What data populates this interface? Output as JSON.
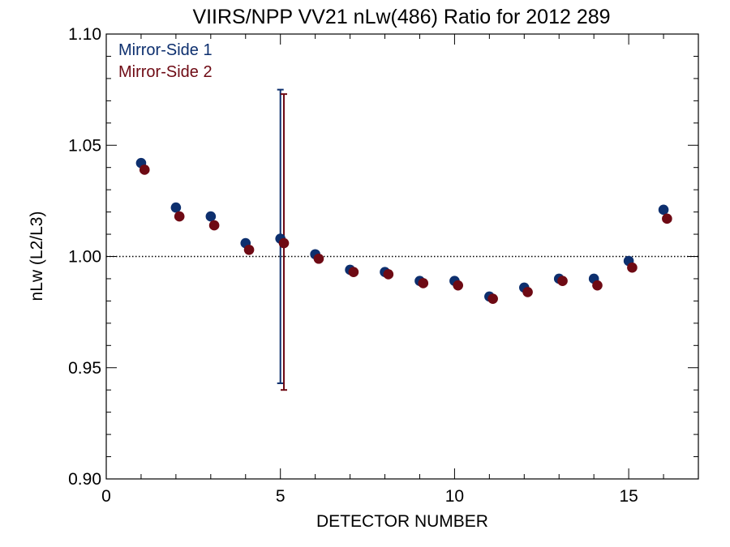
{
  "chart_data": {
    "type": "scatter",
    "title": "VIIRS/NPP VV21 nLw(486) Ratio for 2012 289",
    "xlabel": "DETECTOR NUMBER",
    "ylabel": "nLw (L2/L3)",
    "xlim": [
      0,
      17
    ],
    "ylim": [
      0.9,
      1.1
    ],
    "xticks": [
      0,
      5,
      10,
      15
    ],
    "xtick_labels": [
      "0",
      "5",
      "10",
      "15"
    ],
    "yticks": [
      0.9,
      0.95,
      1.0,
      1.05,
      1.1
    ],
    "ytick_labels": [
      "0.90",
      "0.95",
      "1.00",
      "1.05",
      "1.10"
    ],
    "reference_line": 1.0,
    "legend_position": "top-left",
    "series": [
      {
        "name": "Mirror-Side 1",
        "color": "#0d2f6e",
        "x": [
          1,
          2,
          3,
          4,
          5,
          6,
          7,
          8,
          9,
          10,
          11,
          12,
          13,
          14,
          15,
          16
        ],
        "y": [
          1.042,
          1.022,
          1.018,
          1.006,
          1.008,
          1.001,
          0.994,
          0.993,
          0.989,
          0.989,
          0.982,
          0.986,
          0.99,
          0.99,
          0.998,
          1.021
        ],
        "error_bar": {
          "x": 5,
          "low": 0.943,
          "high": 1.075
        }
      },
      {
        "name": "Mirror-Side 2",
        "color": "#6e0a14",
        "x": [
          1.1,
          2.1,
          3.1,
          4.1,
          5.1,
          6.1,
          7.1,
          8.1,
          9.1,
          10.1,
          11.1,
          12.1,
          13.1,
          14.1,
          15.1,
          16.1
        ],
        "y": [
          1.039,
          1.018,
          1.014,
          1.003,
          1.006,
          0.999,
          0.993,
          0.992,
          0.988,
          0.987,
          0.981,
          0.984,
          0.989,
          0.987,
          0.995,
          1.017
        ],
        "error_bar": {
          "x": 5.1,
          "low": 0.94,
          "high": 1.073
        }
      }
    ]
  }
}
